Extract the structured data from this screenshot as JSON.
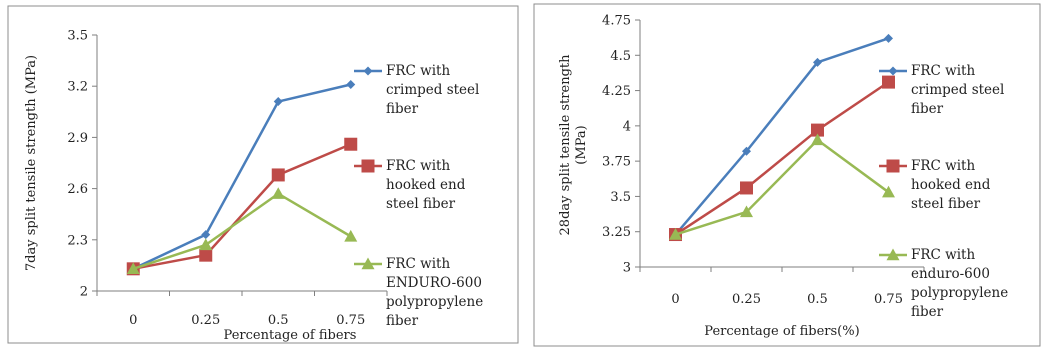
{
  "chart_data": [
    {
      "type": "line",
      "title": "",
      "xlabel": "Percentage of fibers",
      "ylabel": "7day split tensile strength (MPa)",
      "categories": [
        "0",
        "0.25",
        "0.5",
        "0.75"
      ],
      "x": [
        0,
        0.25,
        0.5,
        0.75
      ],
      "ylim": [
        2,
        3.5
      ],
      "yticks": [
        "2",
        "2.3",
        "2.6",
        "2.9",
        "3.2",
        "3.5"
      ],
      "grid": false,
      "legend_position": "right",
      "series": [
        {
          "name_lines": [
            "FRC with",
            "crimped steel",
            "fiber"
          ],
          "values": [
            2.13,
            2.33,
            3.11,
            3.21
          ],
          "color": "#4a7ebb",
          "marker": "diamond"
        },
        {
          "name_lines": [
            "FRC with",
            "hooked end",
            "steel fiber"
          ],
          "values": [
            2.13,
            2.21,
            2.68,
            2.86
          ],
          "color": "#be4b48",
          "marker": "square"
        },
        {
          "name_lines": [
            "FRC with",
            "ENDURO-600",
            "polypropylene",
            "fiber"
          ],
          "values": [
            2.13,
            2.27,
            2.57,
            2.32
          ],
          "color": "#98b954",
          "marker": "triangle"
        }
      ]
    },
    {
      "type": "line",
      "title": "",
      "xlabel": "Percentage of fibers(%)",
      "ylabel_lines": [
        "28day split tensile strength",
        "(MPa)"
      ],
      "categories": [
        "0",
        "0.25",
        "0.5",
        "0.75"
      ],
      "x": [
        0,
        0.25,
        0.5,
        0.75
      ],
      "ylim": [
        3,
        4.75
      ],
      "yticks": [
        "3",
        "3.25",
        "3.5",
        "3.75",
        "4",
        "4.25",
        "4.5",
        "4.75"
      ],
      "grid": false,
      "legend_position": "right",
      "series": [
        {
          "name_lines": [
            "FRC with",
            "crimped steel",
            "fiber"
          ],
          "values": [
            3.23,
            3.82,
            4.45,
            4.62
          ],
          "color": "#4a7ebb",
          "marker": "diamond"
        },
        {
          "name_lines": [
            "FRC with",
            "hooked end",
            "steel fiber"
          ],
          "values": [
            3.23,
            3.56,
            3.97,
            4.31
          ],
          "color": "#be4b48",
          "marker": "square"
        },
        {
          "name_lines": [
            "FRC with",
            "enduro-600",
            "polypropylene",
            "fiber"
          ],
          "values": [
            3.23,
            3.39,
            3.9,
            3.53
          ],
          "color": "#98b954",
          "marker": "triangle"
        }
      ]
    }
  ]
}
